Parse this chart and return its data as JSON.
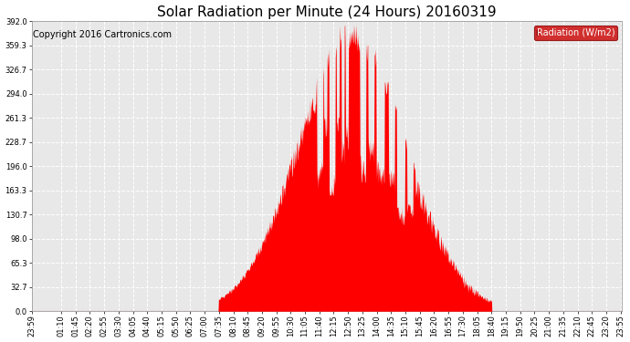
{
  "title": "Solar Radiation per Minute (24 Hours) 20160319",
  "copyright_text": "Copyright 2016 Cartronics.com",
  "ylabel": "Radiation (W/m2)",
  "y_tick_labels": [
    "0.0",
    "32.7",
    "65.3",
    "98.0",
    "130.7",
    "163.3",
    "196.0",
    "228.7",
    "261.3",
    "294.0",
    "326.7",
    "359.3",
    "392.0"
  ],
  "y_tick_values": [
    0.0,
    32.7,
    65.3,
    98.0,
    130.7,
    163.3,
    196.0,
    228.7,
    261.3,
    294.0,
    326.7,
    359.3,
    392.0
  ],
  "ylim": [
    0.0,
    392.0
  ],
  "bg_color": "#ffffff",
  "plot_bg_color": "#e8e8e8",
  "fill_color": "#ff0000",
  "grid_color": "#ffffff",
  "zero_line_color": "#ff0000",
  "title_fontsize": 11,
  "axis_fontsize": 6,
  "copyright_fontsize": 7,
  "legend_bg": "#cc0000",
  "legend_text_color": "#ffffff",
  "x_labels": [
    "23:59",
    "01:10",
    "01:45",
    "02:20",
    "02:55",
    "03:30",
    "04:05",
    "04:40",
    "05:15",
    "05:50",
    "06:25",
    "07:00",
    "07:35",
    "08:10",
    "08:45",
    "09:20",
    "09:55",
    "10:30",
    "11:05",
    "11:40",
    "12:15",
    "12:50",
    "13:25",
    "14:00",
    "14:35",
    "15:10",
    "15:45",
    "16:20",
    "16:55",
    "17:30",
    "18:05",
    "18:40",
    "19:15",
    "19:50",
    "20:25",
    "21:00",
    "21:35",
    "22:10",
    "22:45",
    "23:20",
    "23:55"
  ]
}
